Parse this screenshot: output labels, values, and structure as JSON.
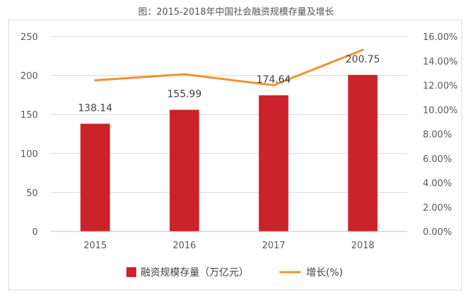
{
  "chart_data": {
    "type": "bar",
    "title": "图：2015-2018年中国社会融资规模存量及增长",
    "categories": [
      "2015",
      "2016",
      "2017",
      "2018"
    ],
    "series": [
      {
        "name": "融资规模存量（万亿元）",
        "type": "bar",
        "axis": "left",
        "values": [
          138.14,
          155.99,
          174.64,
          200.75
        ],
        "data_labels": [
          "138.14",
          "155.99",
          "174.64",
          "200.75"
        ],
        "color": "#cc2229"
      },
      {
        "name": "增长(%)",
        "type": "line",
        "axis": "right",
        "values": [
          12.4,
          12.9,
          12.0,
          14.9
        ],
        "color": "#f0922e"
      }
    ],
    "y_left": {
      "ylim": [
        0,
        250
      ],
      "ticks": [
        "0",
        "50",
        "100",
        "150",
        "200",
        "250"
      ]
    },
    "y_right": {
      "ylim": [
        0,
        16
      ],
      "ticks": [
        "0.00%",
        "2.00%",
        "4.00%",
        "6.00%",
        "8.00%",
        "10.00%",
        "12.00%",
        "14.00%",
        "16.00%"
      ]
    },
    "grid": true,
    "legend_position": "bottom"
  }
}
